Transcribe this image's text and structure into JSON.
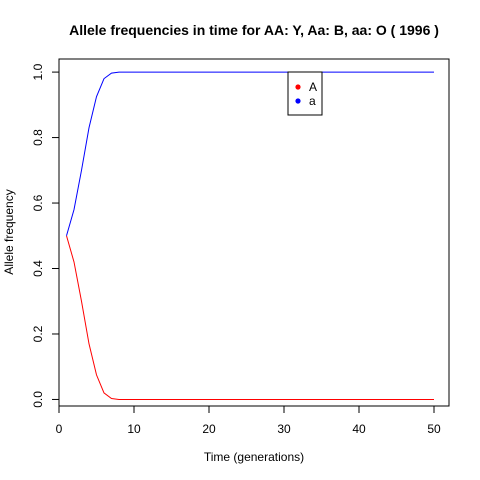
{
  "chart_data": {
    "type": "line",
    "title": "Allele frequencies in time for  AA: Y, Aa: B, aa: O  ( 1996 )",
    "xlabel": "Time (generations)",
    "ylabel": "Allele frequency",
    "xlim": [
      0,
      52
    ],
    "ylim": [
      -0.02,
      1.04
    ],
    "xticks": [
      0,
      10,
      20,
      30,
      40,
      50
    ],
    "yticks": [
      0.0,
      0.2,
      0.4,
      0.6,
      0.8,
      1.0
    ],
    "xtick_labels": [
      "0",
      "10",
      "20",
      "30",
      "40",
      "50"
    ],
    "ytick_labels": [
      "0.0",
      "0.2",
      "0.4",
      "0.6",
      "0.8",
      "1.0"
    ],
    "legend": {
      "placement": "top-center"
    },
    "series": [
      {
        "name": "A",
        "color": "#ff0000",
        "x": [
          1,
          2,
          3,
          4,
          5,
          6,
          7,
          8,
          9,
          10,
          11,
          12,
          13,
          14,
          15,
          16,
          17,
          18,
          19,
          20,
          21,
          22,
          23,
          24,
          25,
          26,
          27,
          28,
          29,
          30,
          31,
          32,
          33,
          34,
          35,
          36,
          37,
          38,
          39,
          40,
          41,
          42,
          43,
          44,
          45,
          46,
          47,
          48,
          49,
          50
        ],
        "values": [
          0.5,
          0.42,
          0.3,
          0.17,
          0.075,
          0.02,
          0.003,
          0.0,
          0.0,
          0.0,
          0.0,
          0.0,
          0.0,
          0.0,
          0.0,
          0.0,
          0.0,
          0.0,
          0.0,
          0.0,
          0.0,
          0.0,
          0.0,
          0.0,
          0.0,
          0.0,
          0.0,
          0.0,
          0.0,
          0.0,
          0.0,
          0.0,
          0.0,
          0.0,
          0.0,
          0.0,
          0.0,
          0.0,
          0.0,
          0.0,
          0.0,
          0.0,
          0.0,
          0.0,
          0.0,
          0.0,
          0.0,
          0.0,
          0.0,
          0.0
        ]
      },
      {
        "name": "a",
        "color": "#0000ff",
        "x": [
          1,
          2,
          3,
          4,
          5,
          6,
          7,
          8,
          9,
          10,
          11,
          12,
          13,
          14,
          15,
          16,
          17,
          18,
          19,
          20,
          21,
          22,
          23,
          24,
          25,
          26,
          27,
          28,
          29,
          30,
          31,
          32,
          33,
          34,
          35,
          36,
          37,
          38,
          39,
          40,
          41,
          42,
          43,
          44,
          45,
          46,
          47,
          48,
          49,
          50
        ],
        "values": [
          0.5,
          0.58,
          0.7,
          0.83,
          0.925,
          0.98,
          0.997,
          1.0,
          1.0,
          1.0,
          1.0,
          1.0,
          1.0,
          1.0,
          1.0,
          1.0,
          1.0,
          1.0,
          1.0,
          1.0,
          1.0,
          1.0,
          1.0,
          1.0,
          1.0,
          1.0,
          1.0,
          1.0,
          1.0,
          1.0,
          1.0,
          1.0,
          1.0,
          1.0,
          1.0,
          1.0,
          1.0,
          1.0,
          1.0,
          1.0,
          1.0,
          1.0,
          1.0,
          1.0,
          1.0,
          1.0,
          1.0,
          1.0,
          1.0,
          1.0
        ]
      }
    ]
  }
}
